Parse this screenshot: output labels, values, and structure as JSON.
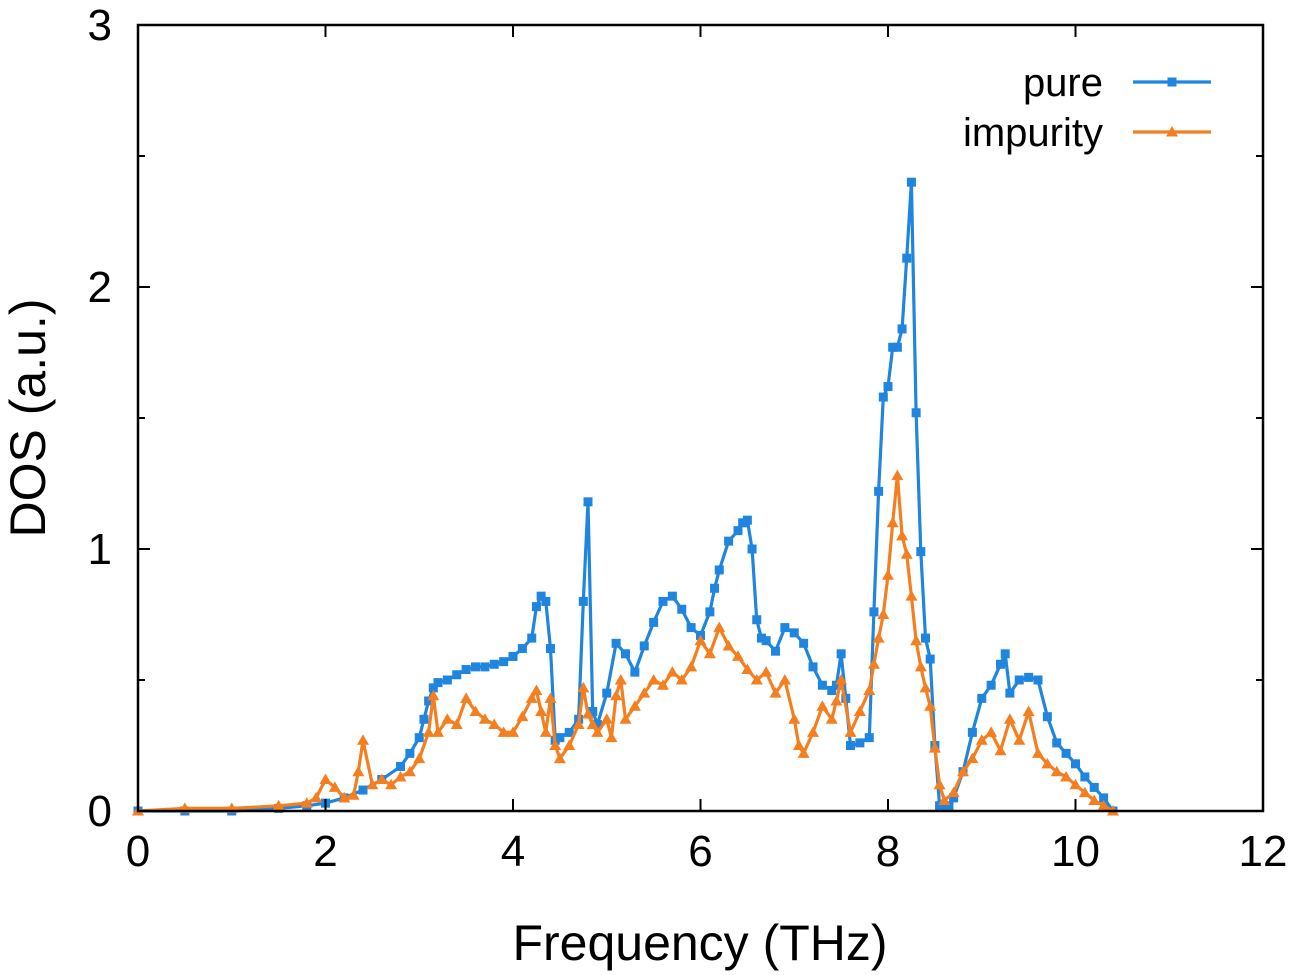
{
  "chart_data": {
    "type": "line",
    "title": "",
    "xlabel": "Frequency (THz)",
    "ylabel": "DOS (a.u.)",
    "xlim": [
      0,
      12
    ],
    "ylim": [
      0,
      3
    ],
    "xticks": [
      0,
      2,
      4,
      6,
      8,
      10,
      12
    ],
    "yticks": [
      0,
      1,
      2,
      3
    ],
    "y_minor_ticks": [
      0.5,
      1.5,
      2.5
    ],
    "grid": false,
    "legend_position": "top-right",
    "series": [
      {
        "name": "pure",
        "color": "#1f85de",
        "marker": "square",
        "x": [
          0.0,
          0.5,
          1.0,
          1.5,
          1.8,
          2.0,
          2.2,
          2.4,
          2.6,
          2.8,
          2.9,
          3.0,
          3.05,
          3.1,
          3.15,
          3.2,
          3.3,
          3.4,
          3.5,
          3.6,
          3.7,
          3.8,
          3.9,
          4.0,
          4.1,
          4.2,
          4.25,
          4.3,
          4.35,
          4.4,
          4.45,
          4.5,
          4.6,
          4.7,
          4.75,
          4.8,
          4.85,
          4.9,
          5.0,
          5.1,
          5.2,
          5.3,
          5.4,
          5.5,
          5.6,
          5.7,
          5.8,
          5.9,
          6.0,
          6.1,
          6.15,
          6.2,
          6.3,
          6.4,
          6.45,
          6.5,
          6.55,
          6.6,
          6.65,
          6.7,
          6.8,
          6.9,
          7.0,
          7.1,
          7.2,
          7.3,
          7.4,
          7.45,
          7.5,
          7.55,
          7.6,
          7.7,
          7.8,
          7.85,
          7.9,
          7.95,
          8.0,
          8.05,
          8.1,
          8.15,
          8.2,
          8.25,
          8.3,
          8.35,
          8.4,
          8.45,
          8.5,
          8.55,
          8.6,
          8.65,
          8.7,
          8.8,
          8.9,
          9.0,
          9.1,
          9.2,
          9.25,
          9.3,
          9.4,
          9.5,
          9.6,
          9.7,
          9.8,
          9.9,
          10.0,
          10.1,
          10.2,
          10.3,
          10.4
        ],
        "values": [
          0.0,
          0.0,
          0.0,
          0.01,
          0.02,
          0.03,
          0.05,
          0.08,
          0.12,
          0.17,
          0.22,
          0.28,
          0.35,
          0.42,
          0.47,
          0.49,
          0.5,
          0.52,
          0.54,
          0.55,
          0.55,
          0.56,
          0.57,
          0.59,
          0.62,
          0.66,
          0.78,
          0.82,
          0.8,
          0.62,
          0.27,
          0.28,
          0.3,
          0.35,
          0.8,
          1.18,
          0.38,
          0.33,
          0.45,
          0.64,
          0.6,
          0.53,
          0.63,
          0.72,
          0.8,
          0.82,
          0.77,
          0.7,
          0.67,
          0.76,
          0.85,
          0.92,
          1.03,
          1.07,
          1.1,
          1.11,
          1.0,
          0.73,
          0.66,
          0.65,
          0.61,
          0.7,
          0.68,
          0.64,
          0.55,
          0.48,
          0.46,
          0.48,
          0.6,
          0.43,
          0.25,
          0.26,
          0.28,
          0.76,
          1.22,
          1.58,
          1.62,
          1.77,
          1.77,
          1.84,
          2.11,
          2.4,
          1.52,
          0.99,
          0.66,
          0.58,
          0.25,
          0.02,
          0.02,
          0.02,
          0.05,
          0.15,
          0.3,
          0.43,
          0.48,
          0.56,
          0.6,
          0.45,
          0.5,
          0.51,
          0.5,
          0.36,
          0.26,
          0.22,
          0.18,
          0.13,
          0.09,
          0.05,
          0.0
        ]
      },
      {
        "name": "impurity",
        "color": "#f47f20",
        "marker": "triangle",
        "x": [
          0.0,
          0.5,
          1.0,
          1.5,
          1.8,
          1.9,
          2.0,
          2.1,
          2.2,
          2.3,
          2.35,
          2.4,
          2.5,
          2.6,
          2.7,
          2.8,
          2.9,
          3.0,
          3.1,
          3.15,
          3.2,
          3.3,
          3.4,
          3.5,
          3.6,
          3.7,
          3.8,
          3.9,
          4.0,
          4.1,
          4.2,
          4.25,
          4.3,
          4.35,
          4.4,
          4.45,
          4.5,
          4.6,
          4.7,
          4.75,
          4.8,
          4.85,
          4.9,
          5.0,
          5.05,
          5.1,
          5.15,
          5.2,
          5.3,
          5.4,
          5.5,
          5.6,
          5.7,
          5.8,
          5.9,
          6.0,
          6.1,
          6.2,
          6.3,
          6.4,
          6.5,
          6.6,
          6.7,
          6.8,
          6.9,
          7.0,
          7.05,
          7.1,
          7.2,
          7.3,
          7.4,
          7.45,
          7.5,
          7.6,
          7.7,
          7.8,
          7.85,
          7.9,
          7.95,
          8.0,
          8.05,
          8.1,
          8.15,
          8.2,
          8.25,
          8.3,
          8.35,
          8.4,
          8.45,
          8.5,
          8.55,
          8.6,
          8.7,
          8.8,
          8.9,
          9.0,
          9.1,
          9.2,
          9.3,
          9.4,
          9.5,
          9.6,
          9.7,
          9.8,
          9.9,
          10.0,
          10.1,
          10.2,
          10.3,
          10.4
        ],
        "values": [
          0.0,
          0.01,
          0.01,
          0.02,
          0.03,
          0.05,
          0.12,
          0.09,
          0.05,
          0.06,
          0.15,
          0.27,
          0.1,
          0.12,
          0.1,
          0.13,
          0.15,
          0.2,
          0.3,
          0.44,
          0.3,
          0.35,
          0.33,
          0.43,
          0.38,
          0.35,
          0.33,
          0.3,
          0.3,
          0.36,
          0.43,
          0.46,
          0.38,
          0.3,
          0.43,
          0.25,
          0.2,
          0.25,
          0.33,
          0.47,
          0.37,
          0.33,
          0.3,
          0.35,
          0.28,
          0.44,
          0.5,
          0.35,
          0.4,
          0.45,
          0.5,
          0.48,
          0.53,
          0.5,
          0.55,
          0.65,
          0.6,
          0.7,
          0.63,
          0.59,
          0.54,
          0.5,
          0.53,
          0.45,
          0.5,
          0.35,
          0.25,
          0.22,
          0.3,
          0.4,
          0.35,
          0.42,
          0.5,
          0.3,
          0.38,
          0.46,
          0.56,
          0.66,
          0.75,
          0.9,
          1.1,
          1.28,
          1.05,
          0.98,
          0.82,
          0.65,
          0.55,
          0.47,
          0.4,
          0.24,
          0.1,
          0.04,
          0.07,
          0.15,
          0.2,
          0.27,
          0.3,
          0.23,
          0.35,
          0.27,
          0.38,
          0.22,
          0.18,
          0.15,
          0.13,
          0.1,
          0.07,
          0.04,
          0.02,
          0.0
        ]
      }
    ]
  }
}
